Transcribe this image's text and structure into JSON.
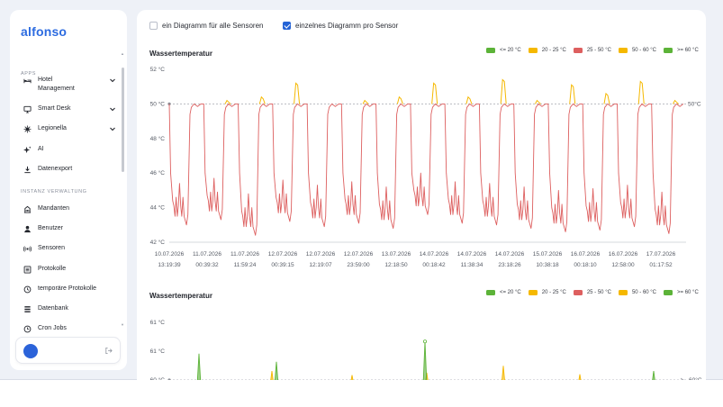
{
  "app": {
    "logo": "alfonso"
  },
  "sidebar": {
    "section_apps": "APPS",
    "section_admin": "INSTANZ VERWALTUNG",
    "apps_items": [
      {
        "label": "Hotel\nManagement",
        "icon": "bed-icon",
        "expandable": true
      },
      {
        "label": "Smart Desk",
        "icon": "monitor-icon",
        "expandable": true
      },
      {
        "label": "Legionella",
        "icon": "virus-icon",
        "expandable": true
      },
      {
        "label": "AI",
        "icon": "sparkles-icon",
        "expandable": false
      },
      {
        "label": "Datenexport",
        "icon": "download-icon",
        "expandable": false
      }
    ],
    "admin_items": [
      {
        "label": "Mandanten",
        "icon": "building-icon"
      },
      {
        "label": "Benutzer",
        "icon": "user-icon"
      },
      {
        "label": "Sensoren",
        "icon": "sensor-icon"
      },
      {
        "label": "Protokolle",
        "icon": "log-icon"
      },
      {
        "label": "temporäre Protokolle",
        "icon": "temp-log-icon"
      },
      {
        "label": "Datenbank",
        "icon": "database-icon"
      },
      {
        "label": "Cron Jobs",
        "icon": "clock-icon"
      }
    ]
  },
  "options": {
    "combined_label": "ein Diagramm für alle Sensoren",
    "combined_checked": false,
    "separate_label": "einzelnes Diagramm pro Sensor",
    "separate_checked": true
  },
  "colors": {
    "green": "#5cb338",
    "yellow": "#f5b800",
    "red": "#dd5f5f",
    "accent": "#2463d6"
  },
  "legend": [
    {
      "label": "<= 20 °C",
      "color": "#5cb338"
    },
    {
      "label": "20 - 25 °C",
      "color": "#f5b800"
    },
    {
      "label": "25 - 50 °C",
      "color": "#dd5f5f"
    },
    {
      "label": "50 - 60 °C",
      "color": "#f5b800"
    },
    {
      "label": ">= 60 °C",
      "color": "#5cb338"
    }
  ],
  "chart_data": [
    {
      "type": "line",
      "title": "Wassertemperatur",
      "ylim": [
        42,
        52
      ],
      "y_ticks": [
        "42 °C",
        "44 °C",
        "46 °C",
        "48 °C",
        "50 °C",
        "52 °C"
      ],
      "reference_line": {
        "value": 50,
        "label": "50°C"
      },
      "x_ticks": [
        [
          "10.07.2026",
          "13:19:39"
        ],
        [
          "11.07.2026",
          "00:39:32"
        ],
        [
          "11.07.2026",
          "11:59:24"
        ],
        [
          "12.07.2026",
          "00:39:15"
        ],
        [
          "12.07.2026",
          "12:19:07"
        ],
        [
          "12.07.2026",
          "23:59:00"
        ],
        [
          "13.07.2026",
          "12:18:50"
        ],
        [
          "14.07.2026",
          "00:18:42"
        ],
        [
          "14.07.2026",
          "11:38:34"
        ],
        [
          "14.07.2026",
          "23:18:26"
        ],
        [
          "15.07.2026",
          "10:38:18"
        ],
        [
          "16.07.2026",
          "00:18:10"
        ],
        [
          "16.07.2026",
          "12:58:00"
        ],
        [
          "17.07.2026",
          "01:17:52"
        ]
      ],
      "cycles": [
        {
          "low": 43.0,
          "high": 50.0,
          "peak": 50.1
        },
        {
          "low": 43.3,
          "high": 50.0,
          "peak": 50.2
        },
        {
          "low": 42.4,
          "high": 50.0,
          "peak": 50.4
        },
        {
          "low": 43.2,
          "high": 50.0,
          "peak": 51.2
        },
        {
          "low": 42.9,
          "high": 50.0,
          "peak": 50.1
        },
        {
          "low": 43.1,
          "high": 50.0,
          "peak": 50.2
        },
        {
          "low": 42.8,
          "high": 50.0,
          "peak": 50.4
        },
        {
          "low": 43.6,
          "high": 50.0,
          "peak": 51.2
        },
        {
          "low": 43.1,
          "high": 50.0,
          "peak": 50.4
        },
        {
          "low": 43.0,
          "high": 50.0,
          "peak": 51.4
        },
        {
          "low": 42.8,
          "high": 50.0,
          "peak": 50.2
        },
        {
          "low": 42.6,
          "high": 50.0,
          "peak": 51.1
        },
        {
          "low": 42.7,
          "high": 50.0,
          "peak": 50.6
        },
        {
          "low": 42.9,
          "high": 50.0,
          "peak": 51.3
        },
        {
          "low": 42.5,
          "high": 50.0,
          "peak": 50.2
        }
      ]
    },
    {
      "type": "line",
      "title": "Wassertemperatur",
      "y_ticks": [
        "61 °C",
        "61 °C",
        "60 °C"
      ],
      "reference_line": {
        "value": 60,
        "label": "60°C"
      },
      "spikes": [
        {
          "series_color": "green",
          "height": 0.65
        },
        {
          "series_color": "yellow",
          "height": 0.22
        },
        {
          "series_color": "green",
          "height": 0.45
        },
        {
          "series_color": "yellow",
          "height": 0.12
        },
        {
          "series_color": "yellow",
          "height": 0.18
        },
        {
          "series_color": "green",
          "height": 0.95
        },
        {
          "series_color": "yellow",
          "height": 0.35
        },
        {
          "series_color": "yellow",
          "height": 0.14
        },
        {
          "series_color": "green",
          "height": 0.22
        }
      ]
    }
  ]
}
